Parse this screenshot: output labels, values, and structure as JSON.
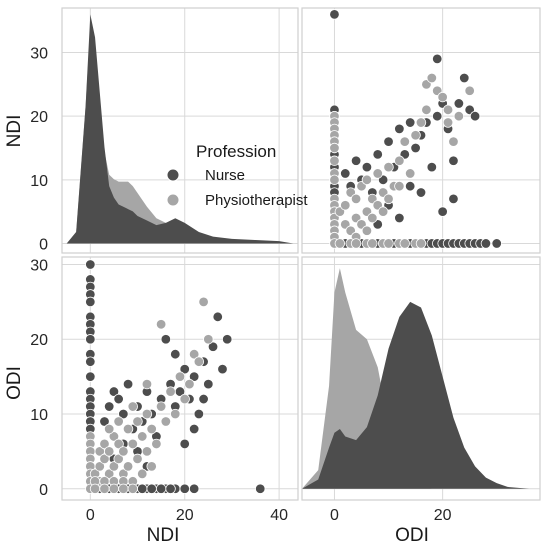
{
  "chart_data": {
    "type": "scatter",
    "kind": "pairplot",
    "variables": [
      "NDI",
      "ODI"
    ],
    "legend": {
      "title": "Profession",
      "entries": [
        {
          "name": "Nurse",
          "color": "#4d4d4d"
        },
        {
          "name": "Physiotherapist",
          "color": "#a6a6a6"
        }
      ]
    },
    "axes": {
      "NDI": {
        "label": "NDI",
        "ticks_x": [
          0,
          20,
          40
        ],
        "ticks_y": [
          0,
          10,
          20,
          30
        ],
        "range": [
          -6,
          44
        ],
        "y_range": [
          -1.5,
          37
        ]
      },
      "ODI": {
        "label": "ODI",
        "ticks_x": [
          0,
          20
        ],
        "ticks_y": [
          0,
          10,
          20,
          30
        ],
        "range": [
          -6,
          38
        ],
        "y_range": [
          -1.5,
          31
        ]
      }
    },
    "kde": {
      "NDI": {
        "x": [
          -5,
          -3,
          -1,
          0,
          1,
          2,
          3,
          4,
          5,
          6,
          7,
          8,
          9,
          10,
          12,
          14,
          16,
          18,
          20,
          23,
          26,
          30,
          35,
          40,
          43
        ],
        "Nurse": [
          0,
          0.05,
          0.6,
          1.0,
          0.9,
          0.66,
          0.42,
          0.25,
          0.2,
          0.17,
          0.16,
          0.15,
          0.14,
          0.12,
          0.1,
          0.08,
          0.09,
          0.11,
          0.09,
          0.05,
          0.03,
          0.02,
          0.015,
          0.01,
          0
        ],
        "Physiotherapist": [
          0,
          0.05,
          0.6,
          0.95,
          0.85,
          0.6,
          0.4,
          0.3,
          0.28,
          0.27,
          0.27,
          0.27,
          0.25,
          0.22,
          0.16,
          0.11,
          0.09,
          0.08,
          0.06,
          0.03,
          0.015,
          0.005,
          0,
          0,
          0
        ]
      },
      "ODI": {
        "x": [
          -6,
          -3,
          -1,
          0,
          1,
          2,
          4,
          6,
          8,
          10,
          12,
          14,
          16,
          18,
          20,
          22,
          24,
          26,
          28,
          30,
          32,
          34,
          36
        ],
        "Nurse": [
          0,
          0.05,
          0.22,
          0.3,
          0.32,
          0.28,
          0.26,
          0.33,
          0.5,
          0.75,
          0.92,
          1.0,
          0.97,
          0.82,
          0.6,
          0.38,
          0.22,
          0.12,
          0.06,
          0.03,
          0.01,
          0.005,
          0
        ],
        "Physiotherapist": [
          0,
          0.1,
          0.55,
          1.05,
          1.18,
          1.05,
          0.85,
          0.8,
          0.65,
          0.35,
          0.15,
          0.05,
          0.01,
          0,
          0,
          0,
          0,
          0,
          0,
          0,
          0,
          0,
          0
        ]
      }
    },
    "points_NDI_vs_ODI": {
      "Nurse": [
        [
          0,
          30
        ],
        [
          0,
          28
        ],
        [
          0,
          27
        ],
        [
          0,
          26
        ],
        [
          0,
          25
        ],
        [
          0,
          23
        ],
        [
          0,
          22
        ],
        [
          0,
          21
        ],
        [
          0,
          20
        ],
        [
          0,
          18
        ],
        [
          0,
          17
        ],
        [
          0,
          15
        ],
        [
          0,
          13
        ],
        [
          0,
          12
        ],
        [
          0,
          11
        ],
        [
          0,
          10
        ],
        [
          0,
          9
        ],
        [
          0,
          8
        ],
        [
          3,
          9
        ],
        [
          4,
          11
        ],
        [
          5,
          13
        ],
        [
          6,
          12
        ],
        [
          7,
          10
        ],
        [
          8,
          14
        ],
        [
          9,
          8
        ],
        [
          10,
          11
        ],
        [
          11,
          9
        ],
        [
          12,
          13
        ],
        [
          13,
          10
        ],
        [
          14,
          7
        ],
        [
          15,
          12
        ],
        [
          16,
          9
        ],
        [
          17,
          14
        ],
        [
          18,
          11
        ],
        [
          19,
          13
        ],
        [
          20,
          16
        ],
        [
          21,
          12
        ],
        [
          22,
          15
        ],
        [
          23,
          10
        ],
        [
          24,
          17
        ],
        [
          25,
          14
        ],
        [
          26,
          19
        ],
        [
          27,
          23
        ],
        [
          28,
          16
        ],
        [
          29,
          20
        ],
        [
          16,
          20
        ],
        [
          18,
          18
        ],
        [
          24,
          12
        ],
        [
          22,
          8
        ],
        [
          20,
          6
        ],
        [
          10,
          5
        ],
        [
          12,
          3
        ],
        [
          5,
          4
        ],
        [
          7,
          6
        ],
        [
          36,
          0
        ],
        [
          2,
          0
        ],
        [
          4,
          0
        ],
        [
          6,
          0
        ],
        [
          8,
          0
        ],
        [
          10,
          0
        ],
        [
          12,
          0
        ],
        [
          14,
          0
        ],
        [
          16,
          0
        ],
        [
          18,
          0
        ],
        [
          20,
          0
        ],
        [
          22,
          0
        ],
        [
          11,
          0
        ],
        [
          13,
          0
        ],
        [
          15,
          0
        ],
        [
          17,
          0
        ]
      ],
      "Physiotherapist": [
        [
          0,
          7
        ],
        [
          0,
          6
        ],
        [
          0,
          5
        ],
        [
          0,
          4
        ],
        [
          0,
          3
        ],
        [
          0,
          2
        ],
        [
          0,
          1
        ],
        [
          0,
          0
        ],
        [
          1,
          2
        ],
        [
          2,
          3
        ],
        [
          2,
          5
        ],
        [
          3,
          4
        ],
        [
          3,
          6
        ],
        [
          4,
          2
        ],
        [
          4,
          5
        ],
        [
          5,
          3
        ],
        [
          5,
          7
        ],
        [
          6,
          4
        ],
        [
          6,
          6
        ],
        [
          7,
          2
        ],
        [
          7,
          5
        ],
        [
          8,
          3
        ],
        [
          8,
          8
        ],
        [
          9,
          6
        ],
        [
          10,
          4
        ],
        [
          10,
          9
        ],
        [
          11,
          7
        ],
        [
          12,
          5
        ],
        [
          12,
          10
        ],
        [
          13,
          8
        ],
        [
          14,
          6
        ],
        [
          15,
          11
        ],
        [
          16,
          9
        ],
        [
          17,
          13
        ],
        [
          18,
          10
        ],
        [
          19,
          15
        ],
        [
          20,
          12
        ],
        [
          21,
          14
        ],
        [
          22,
          18
        ],
        [
          23,
          17
        ],
        [
          24,
          25
        ],
        [
          25,
          20
        ],
        [
          15,
          22
        ],
        [
          12,
          14
        ],
        [
          9,
          11
        ],
        [
          6,
          9
        ],
        [
          4,
          8
        ],
        [
          2,
          1
        ],
        [
          1,
          1
        ],
        [
          3,
          1
        ],
        [
          5,
          1
        ],
        [
          7,
          1
        ],
        [
          9,
          1
        ],
        [
          11,
          2
        ],
        [
          13,
          3
        ],
        [
          1,
          0
        ],
        [
          3,
          0
        ],
        [
          5,
          0
        ],
        [
          7,
          0
        ],
        [
          9,
          0
        ]
      ]
    },
    "points_ODI_vs_NDI": {
      "Nurse": [
        [
          0,
          36
        ],
        [
          0,
          21
        ],
        [
          0,
          20
        ],
        [
          0,
          18
        ],
        [
          0,
          16
        ],
        [
          0,
          14
        ],
        [
          0,
          12
        ],
        [
          0,
          11
        ],
        [
          0,
          10
        ],
        [
          0,
          9
        ],
        [
          0,
          8
        ],
        [
          2,
          11
        ],
        [
          3,
          9
        ],
        [
          4,
          13
        ],
        [
          5,
          10
        ],
        [
          6,
          12
        ],
        [
          7,
          8
        ],
        [
          8,
          14
        ],
        [
          9,
          10
        ],
        [
          10,
          16
        ],
        [
          11,
          12
        ],
        [
          12,
          18
        ],
        [
          13,
          14
        ],
        [
          14,
          19
        ],
        [
          15,
          15
        ],
        [
          16,
          17
        ],
        [
          17,
          19
        ],
        [
          18,
          12
        ],
        [
          19,
          20
        ],
        [
          20,
          22
        ],
        [
          21,
          18
        ],
        [
          22,
          13
        ],
        [
          23,
          22
        ],
        [
          24,
          26
        ],
        [
          25,
          21
        ],
        [
          26,
          20
        ],
        [
          19,
          29
        ],
        [
          14,
          9
        ],
        [
          10,
          6
        ],
        [
          12,
          4
        ],
        [
          8,
          3
        ],
        [
          22,
          7
        ],
        [
          16,
          8
        ],
        [
          20,
          5
        ],
        [
          24,
          26
        ],
        [
          2,
          0
        ],
        [
          5,
          0
        ],
        [
          8,
          0
        ],
        [
          11,
          0
        ],
        [
          14,
          0
        ],
        [
          17,
          0
        ],
        [
          18,
          0
        ],
        [
          19,
          0
        ],
        [
          20,
          0
        ],
        [
          21,
          0
        ],
        [
          22,
          0
        ],
        [
          23,
          0
        ],
        [
          24,
          0
        ],
        [
          25,
          0
        ],
        [
          26,
          0
        ],
        [
          27,
          0
        ],
        [
          28,
          0
        ],
        [
          30,
          0
        ]
      ],
      "Physiotherapist": [
        [
          0,
          20
        ],
        [
          0,
          19
        ],
        [
          0,
          18
        ],
        [
          0,
          17
        ],
        [
          0,
          16
        ],
        [
          0,
          15
        ],
        [
          0,
          13
        ],
        [
          0,
          11
        ],
        [
          0,
          10
        ],
        [
          0,
          7
        ],
        [
          0,
          6
        ],
        [
          0,
          5
        ],
        [
          0,
          4
        ],
        [
          0,
          3
        ],
        [
          0,
          2
        ],
        [
          0,
          1
        ],
        [
          0,
          0
        ],
        [
          1,
          5
        ],
        [
          2,
          6
        ],
        [
          2,
          3
        ],
        [
          3,
          8
        ],
        [
          3,
          2
        ],
        [
          4,
          7
        ],
        [
          4,
          4
        ],
        [
          5,
          9
        ],
        [
          5,
          3
        ],
        [
          6,
          5
        ],
        [
          6,
          10
        ],
        [
          7,
          7
        ],
        [
          7,
          4
        ],
        [
          8,
          11
        ],
        [
          8,
          6
        ],
        [
          9,
          8
        ],
        [
          9,
          5
        ],
        [
          10,
          12
        ],
        [
          11,
          9
        ],
        [
          12,
          13
        ],
        [
          13,
          16
        ],
        [
          14,
          11
        ],
        [
          15,
          17
        ],
        [
          16,
          19
        ],
        [
          17,
          25
        ],
        [
          18,
          26
        ],
        [
          19,
          24
        ],
        [
          20,
          23
        ],
        [
          21,
          19
        ],
        [
          21,
          21
        ],
        [
          22,
          16
        ],
        [
          23,
          20
        ],
        [
          25,
          24
        ],
        [
          17,
          21
        ],
        [
          12,
          9
        ],
        [
          10,
          7
        ],
        [
          6,
          2
        ],
        [
          4,
          1
        ],
        [
          1,
          0
        ],
        [
          3,
          0
        ],
        [
          4,
          0
        ],
        [
          6,
          0
        ],
        [
          7,
          0
        ],
        [
          9,
          0
        ],
        [
          10,
          0
        ],
        [
          12,
          0
        ],
        [
          13,
          0
        ],
        [
          15,
          0
        ],
        [
          16,
          0
        ]
      ]
    }
  }
}
